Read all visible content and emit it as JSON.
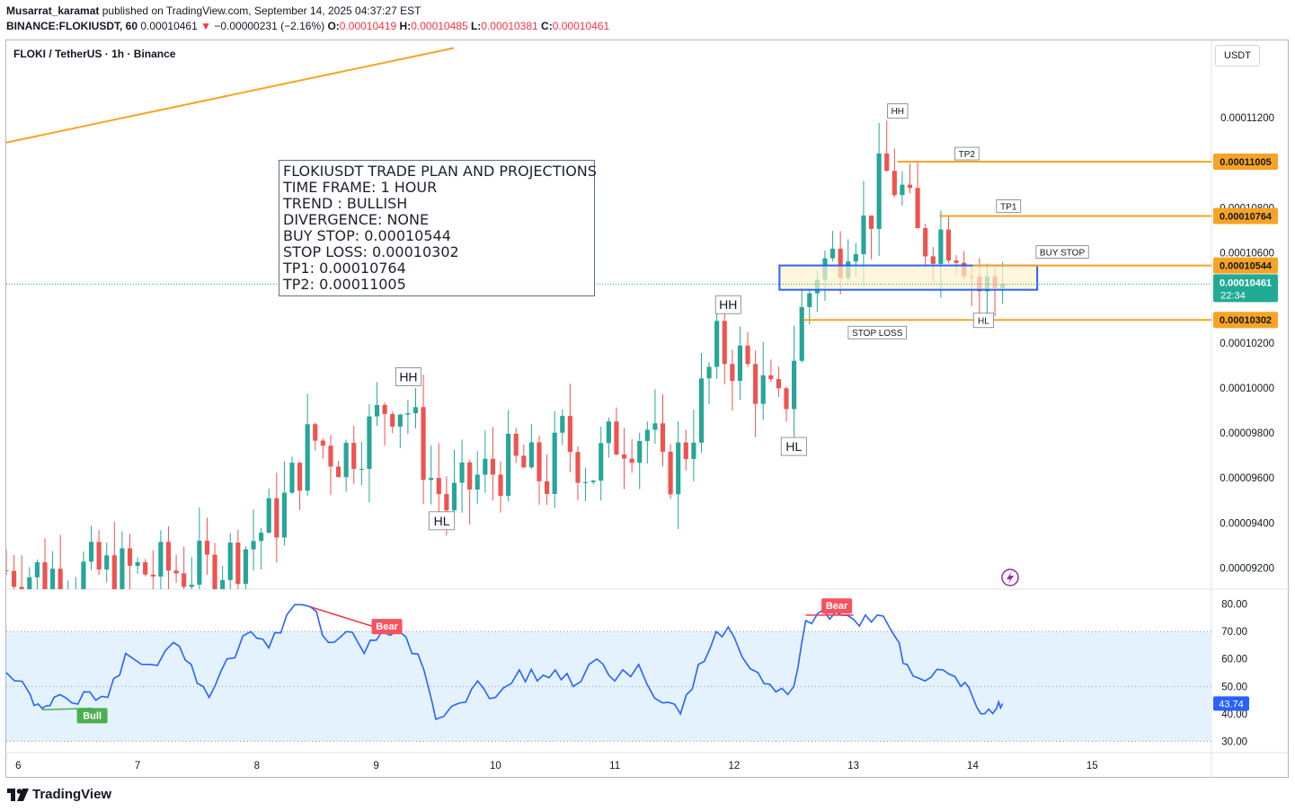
{
  "header": {
    "author": "Musarrat_karamat",
    "published_text": "published on TradingView.com, September 14, 2025 04:37:27 EST",
    "symbol": "BINANCE:FLOKIUSDT, 60",
    "last": "0.00010461",
    "change": "−0.00000231 (−2.16%)",
    "open_label": "O:",
    "open": "0.00010419",
    "high_label": "H:",
    "high": "0.00010485",
    "low_label": "L:",
    "low": "0.00010381",
    "close_label": "C:",
    "close": "0.00010461"
  },
  "chart_title": "FLOKI / TetherUS · 1h · Binance",
  "currency_button": "USDT",
  "brand": "TradingView",
  "trade_plan": [
    "FLOKIUSDT TRADE PLAN AND PROJECTIONS",
    "TIME FRAME: 1 HOUR",
    "TREND : BULLISH",
    "DIVERGENCE: NONE",
    "BUY STOP: 0.00010544",
    "STOP LOSS: 0.00010302",
    "TP1: 0.00010764",
    "TP2: 0.00011005"
  ],
  "colors": {
    "up": "#26a69a",
    "down": "#ef5350",
    "level": "#f7a325",
    "zone_border": "#2962ff",
    "zone_fill": "#fff2cc",
    "rsi": "#2962ff",
    "rsi_band": "#e3f2fd",
    "last_price": "#22ab94"
  },
  "chart_data": [
    {
      "type": "candlestick",
      "x_ticks": [
        "6",
        "7",
        "8",
        "9",
        "10",
        "11",
        "12",
        "13",
        "14",
        "15"
      ],
      "y_ticks": [
        "0.00011200",
        "0.00011000",
        "0.00010800",
        "0.00010600",
        "0.00010400",
        "0.00010200",
        "0.00010000",
        "0.00009800",
        "0.00009600",
        "0.00009400",
        "0.00009200"
      ],
      "y_ticks_values": [
        0.000112,
        0.00011,
        0.000108,
        0.000106,
        0.000104,
        0.000102,
        0.0001,
        9.8e-05,
        9.6e-05,
        9.4e-05,
        9.2e-05
      ],
      "ylim": [
        9.11e-05,
        0.0001146
      ],
      "xlim": [
        5.9,
        16.0
      ],
      "levels": [
        {
          "label": "TP2",
          "price": 0.00011005,
          "price_text": "0.00011005",
          "from_x": 13.37
        },
        {
          "label": "TP1",
          "price": 0.00010764,
          "price_text": "0.00010764",
          "from_x": 13.72
        },
        {
          "label": "BUY STOP",
          "price": 0.00010544,
          "price_text": "0.00010544",
          "from_x": 14.0
        },
        {
          "label": "STOP LOSS",
          "price": 0.00010302,
          "price_text": "0.00010302",
          "from_x": 12.58
        }
      ],
      "last_price": {
        "price": 0.00010461,
        "text": "0.00010461",
        "countdown": "22:34"
      },
      "zone": {
        "x0": 12.38,
        "x1": 14.54,
        "top": 0.00010544,
        "bottom": 0.00010436
      },
      "trendline": {
        "x0": 5.9,
        "y0": 0.0001109,
        "x1": 9.65,
        "y1": 0.0001151
      },
      "swing_labels": [
        {
          "text": "HH",
          "x": 9.27,
          "price": 0.0001005
        },
        {
          "text": "HL",
          "x": 9.55,
          "price": 9.41e-05
        },
        {
          "text": "HH",
          "x": 11.95,
          "price": 0.0001037
        },
        {
          "text": "HL",
          "x": 12.5,
          "price": 9.74e-05
        },
        {
          "text": "HH",
          "x": 13.37,
          "price": 0.0001123
        },
        {
          "text": "HL",
          "x": 14.09,
          "price": 0.000103
        }
      ],
      "anchors": [
        [
          5.9,
          9.19e-05
        ],
        [
          6.2,
          9.18e-05
        ],
        [
          6.9,
          9.18e-05
        ],
        [
          7.25,
          9.19e-05
        ],
        [
          7.6,
          9.19e-05
        ],
        [
          7.85,
          9.27e-05
        ],
        [
          8.2,
          9.45e-05
        ],
        [
          8.45,
          9.78e-05
        ],
        [
          8.7,
          9.7e-05
        ],
        [
          8.95,
          9.81e-05
        ],
        [
          9.1,
          9.95e-05
        ],
        [
          9.25,
          9.93e-05
        ],
        [
          9.45,
          9.61e-05
        ],
        [
          9.6,
          9.47e-05
        ],
        [
          9.85,
          9.6e-05
        ],
        [
          10.1,
          9.66e-05
        ],
        [
          10.3,
          9.63e-05
        ],
        [
          10.45,
          9.6e-05
        ],
        [
          10.55,
          9.79e-05
        ],
        [
          10.8,
          9.62e-05
        ],
        [
          11.0,
          9.78e-05
        ],
        [
          11.3,
          9.82e-05
        ],
        [
          11.4,
          9.59e-05
        ],
        [
          11.6,
          9.75e-05
        ],
        [
          11.85,
          0.0001017
        ],
        [
          12.05,
          0.0001012
        ],
        [
          12.25,
          9.98e-05
        ],
        [
          12.4,
          9.87e-05
        ],
        [
          12.55,
          0.000103
        ],
        [
          12.7,
          0.0001054
        ],
        [
          12.85,
          0.0001058
        ],
        [
          12.95,
          0.000107
        ],
        [
          13.1,
          0.0001072
        ],
        [
          13.25,
          0.0001096
        ],
        [
          13.4,
          0.0001088
        ],
        [
          13.55,
          0.0001064
        ],
        [
          13.75,
          0.000107
        ],
        [
          13.9,
          0.0001064
        ],
        [
          14.05,
          0.0001044
        ],
        [
          14.25,
          0.0001046
        ]
      ],
      "bar_count": 130
    },
    {
      "type": "line",
      "name": "RSI",
      "y_ticks": [
        "80.00",
        "70.00",
        "60.00",
        "50.00",
        "40.00",
        "30.00"
      ],
      "y_ticks_values": [
        80,
        70,
        60,
        50,
        40,
        30
      ],
      "ylim": [
        26.5,
        83.5
      ],
      "band": [
        30,
        70
      ],
      "midline": 50,
      "last_value": "43.74",
      "points": [
        [
          5.9,
          55
        ],
        [
          6.1,
          47
        ],
        [
          6.2,
          42
        ],
        [
          6.3,
          46
        ],
        [
          6.45,
          44
        ],
        [
          6.6,
          48
        ],
        [
          6.75,
          46
        ],
        [
          6.9,
          62
        ],
        [
          7.1,
          58
        ],
        [
          7.3,
          66
        ],
        [
          7.45,
          58
        ],
        [
          7.6,
          46
        ],
        [
          7.75,
          60
        ],
        [
          7.95,
          70
        ],
        [
          8.1,
          64
        ],
        [
          8.25,
          76
        ],
        [
          8.45,
          79
        ],
        [
          8.6,
          66
        ],
        [
          8.75,
          70
        ],
        [
          8.9,
          62
        ],
        [
          9.05,
          70
        ],
        [
          9.25,
          68
        ],
        [
          9.4,
          56
        ],
        [
          9.5,
          38
        ],
        [
          9.7,
          44
        ],
        [
          9.85,
          52
        ],
        [
          10.0,
          46
        ],
        [
          10.2,
          56
        ],
        [
          10.35,
          52
        ],
        [
          10.5,
          56
        ],
        [
          10.65,
          50
        ],
        [
          10.85,
          60
        ],
        [
          11.0,
          52
        ],
        [
          11.2,
          58
        ],
        [
          11.4,
          44
        ],
        [
          11.55,
          40
        ],
        [
          11.7,
          58
        ],
        [
          11.85,
          70
        ],
        [
          12.0,
          68
        ],
        [
          12.2,
          55
        ],
        [
          12.35,
          48
        ],
        [
          12.5,
          50
        ],
        [
          12.6,
          74
        ],
        [
          12.75,
          78
        ],
        [
          12.9,
          76
        ],
        [
          13.05,
          72
        ],
        [
          13.2,
          76
        ],
        [
          13.35,
          68
        ],
        [
          13.45,
          58
        ],
        [
          13.6,
          52
        ],
        [
          13.75,
          56
        ],
        [
          13.9,
          50
        ],
        [
          14.0,
          46
        ],
        [
          14.1,
          40
        ],
        [
          14.2,
          42
        ],
        [
          14.25,
          43.74
        ]
      ],
      "annotations": [
        {
          "text": "Bull",
          "type": "bull",
          "x": 6.62,
          "value": 39.5
        },
        {
          "text": "Bear",
          "type": "bear",
          "x": 9.09,
          "value": 72
        },
        {
          "text": "Bear",
          "type": "bear",
          "x": 12.86,
          "value": 79.5
        }
      ],
      "divergence_lines": [
        {
          "type": "bull",
          "x0": 6.2,
          "v0": 41.5,
          "x1": 6.62,
          "v1": 42
        },
        {
          "type": "bear",
          "x0": 8.45,
          "v0": 79,
          "x1": 9.0,
          "v1": 71.5
        },
        {
          "type": "bear",
          "x0": 12.6,
          "v0": 76,
          "x1": 13.0,
          "v1": 76
        }
      ]
    }
  ]
}
